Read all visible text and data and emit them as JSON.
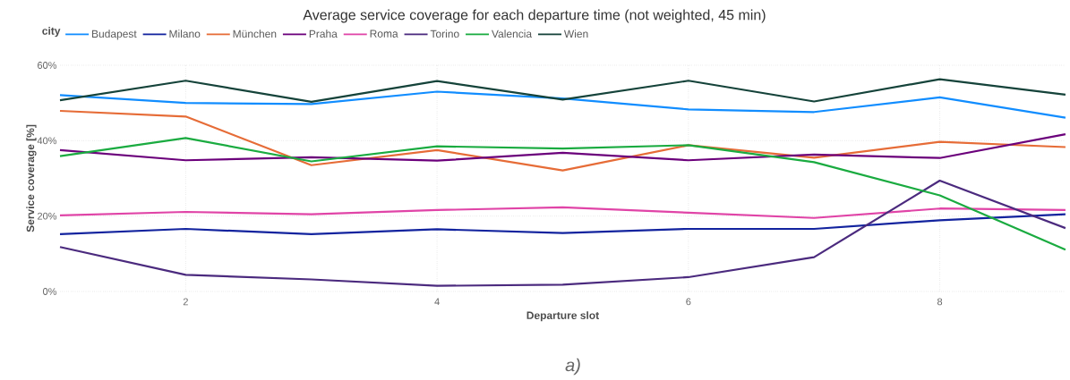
{
  "chart_data": {
    "type": "line",
    "title": "Average service coverage for each departure time (not weighted, 45 min)",
    "xlabel": "Departure slot",
    "ylabel": "Service coverage [%]",
    "legend_title": "city",
    "annotations": [
      "*a)*"
    ],
    "x": [
      1,
      2,
      3,
      4,
      5,
      6,
      7,
      8,
      9
    ],
    "series": [
      {
        "name": "Budapest",
        "color": "#118dff",
        "values": [
          52.1,
          50.0,
          49.7,
          53.0,
          51.2,
          48.3,
          47.6,
          51.5,
          46.1
        ]
      },
      {
        "name": "Milano",
        "color": "#12239e",
        "values": [
          15.2,
          16.6,
          15.2,
          16.5,
          15.5,
          16.6,
          16.6,
          18.9,
          20.5
        ]
      },
      {
        "name": "München",
        "color": "#e66c37",
        "values": [
          47.9,
          46.4,
          33.5,
          37.5,
          32.1,
          38.8,
          35.5,
          39.7,
          38.3
        ]
      },
      {
        "name": "Praha",
        "color": "#6b007b",
        "values": [
          37.5,
          34.8,
          35.6,
          34.7,
          36.8,
          34.8,
          36.3,
          35.4,
          41.7
        ]
      },
      {
        "name": "Roma",
        "color": "#e044a7",
        "values": [
          20.2,
          21.1,
          20.5,
          21.6,
          22.3,
          20.9,
          19.5,
          22.0,
          21.6
        ]
      },
      {
        "name": "Torino",
        "color": "#4b2a7e",
        "values": [
          11.8,
          4.4,
          3.2,
          1.5,
          1.8,
          3.8,
          9.1,
          29.4,
          16.8
        ]
      },
      {
        "name": "Valencia",
        "color": "#1aab40",
        "values": [
          35.9,
          40.7,
          34.5,
          38.5,
          37.9,
          38.8,
          34.3,
          25.5,
          11.1
        ]
      },
      {
        "name": "Wien",
        "color": "#15433a",
        "values": [
          50.7,
          55.9,
          50.3,
          55.8,
          50.9,
          55.9,
          50.4,
          56.3,
          52.2
        ]
      }
    ],
    "xlim": [
      1,
      9
    ],
    "ylim": [
      0,
      60
    ],
    "xticks": [
      2,
      4,
      6,
      8
    ],
    "yticks": [
      {
        "value": 0,
        "label": "0%"
      },
      {
        "value": 20,
        "label": "20%"
      },
      {
        "value": 40,
        "label": "40%"
      },
      {
        "value": 60,
        "label": "60%"
      }
    ],
    "grid": true,
    "legend": "top left",
    "marker": "none",
    "line_style": "solid"
  }
}
